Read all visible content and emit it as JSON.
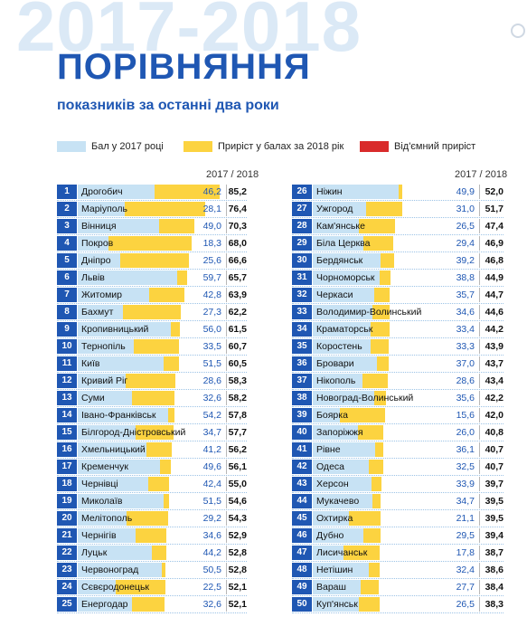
{
  "header": {
    "bg_years": "2017-2018",
    "title": "ПОРІВНЯННЯ",
    "subtitle": "показників за останні два роки"
  },
  "legend": [
    {
      "label": "Бал у 2017 році",
      "color": "#c7e2f4"
    },
    {
      "label": "Приріст у балах за 2018 рік",
      "color": "#fcd340"
    },
    {
      "label": "Від'ємний приріст",
      "color": "#d92b2b"
    }
  ],
  "column_header": "2017 / 2018",
  "chart_data": {
    "type": "bar",
    "stacked": true,
    "title": "ПОРІВНЯННЯ",
    "subtitle": "показників за останні два роки",
    "series": [
      {
        "name": "Бал у 2017 році",
        "color": "#c7e2f4"
      },
      {
        "name": "Приріст у балах за 2018 рік",
        "color": "#fcd340"
      },
      {
        "name": "Від'ємний приріст",
        "color": "#d92b2b"
      }
    ],
    "xlim": [
      0,
      90
    ],
    "rows": [
      {
        "rank": "1",
        "city": "Дрогобич",
        "v2017": "46,2",
        "v2018": "85,2"
      },
      {
        "rank": "2",
        "city": "Маріуполь",
        "v2017": "28,1",
        "v2018": "76,4"
      },
      {
        "rank": "3",
        "city": "Вінниця",
        "v2017": "49,0",
        "v2018": "70,3"
      },
      {
        "rank": "4",
        "city": "Покров",
        "v2017": "18,3",
        "v2018": "68,0"
      },
      {
        "rank": "5",
        "city": "Дніпро",
        "v2017": "25,6",
        "v2018": "66,6"
      },
      {
        "rank": "6",
        "city": "Львів",
        "v2017": "59,7",
        "v2018": "65,7"
      },
      {
        "rank": "7",
        "city": "Житомир",
        "v2017": "42,8",
        "v2018": "63,9"
      },
      {
        "rank": "8",
        "city": "Бахмут",
        "v2017": "27,3",
        "v2018": "62,2"
      },
      {
        "rank": "9",
        "city": "Кропивницький",
        "v2017": "56,0",
        "v2018": "61,5"
      },
      {
        "rank": "10",
        "city": "Тернопіль",
        "v2017": "33,5",
        "v2018": "60,7"
      },
      {
        "rank": "11",
        "city": "Київ",
        "v2017": "51,5",
        "v2018": "60,5"
      },
      {
        "rank": "12",
        "city": "Кривий Ріг",
        "v2017": "28,6",
        "v2018": "58,3"
      },
      {
        "rank": "13",
        "city": "Суми",
        "v2017": "32,6",
        "v2018": "58,2"
      },
      {
        "rank": "14",
        "city": "Івано-Франківськ",
        "v2017": "54,2",
        "v2018": "57,8"
      },
      {
        "rank": "15",
        "city": "Білгород-Дністровський",
        "v2017": "34,7",
        "v2018": "57,7"
      },
      {
        "rank": "16",
        "city": "Хмельницький",
        "v2017": "41,2",
        "v2018": "56,2"
      },
      {
        "rank": "17",
        "city": "Кременчук",
        "v2017": "49,6",
        "v2018": "56,1"
      },
      {
        "rank": "18",
        "city": "Чернівці",
        "v2017": "42,4",
        "v2018": "55,0"
      },
      {
        "rank": "19",
        "city": "Миколаїв",
        "v2017": "51,5",
        "v2018": "54,6"
      },
      {
        "rank": "20",
        "city": "Мелітополь",
        "v2017": "29,2",
        "v2018": "54,3"
      },
      {
        "rank": "21",
        "city": "Чернігів",
        "v2017": "34,6",
        "v2018": "52,9"
      },
      {
        "rank": "22",
        "city": "Луцьк",
        "v2017": "44,2",
        "v2018": "52,8"
      },
      {
        "rank": "23",
        "city": "Червоноград",
        "v2017": "50,5",
        "v2018": "52,8"
      },
      {
        "rank": "24",
        "city": "Сєвєродонецьк",
        "v2017": "22,5",
        "v2018": "52,1"
      },
      {
        "rank": "25",
        "city": "Енергодар",
        "v2017": "32,6",
        "v2018": "52,1"
      },
      {
        "rank": "26",
        "city": "Ніжин",
        "v2017": "49,9",
        "v2018": "52,0"
      },
      {
        "rank": "27",
        "city": "Ужгород",
        "v2017": "31,0",
        "v2018": "51,7"
      },
      {
        "rank": "28",
        "city": "Кам'янське",
        "v2017": "26,5",
        "v2018": "47,4"
      },
      {
        "rank": "29",
        "city": "Біла Церква",
        "v2017": "29,4",
        "v2018": "46,9"
      },
      {
        "rank": "30",
        "city": "Бердянськ",
        "v2017": "39,2",
        "v2018": "46,8"
      },
      {
        "rank": "31",
        "city": "Чорноморськ",
        "v2017": "38,8",
        "v2018": "44,9"
      },
      {
        "rank": "32",
        "city": "Черкаси",
        "v2017": "35,7",
        "v2018": "44,7"
      },
      {
        "rank": "33",
        "city": "Володимир-Волинський",
        "v2017": "34,6",
        "v2018": "44,6"
      },
      {
        "rank": "34",
        "city": "Краматорськ",
        "v2017": "33,4",
        "v2018": "44,2"
      },
      {
        "rank": "35",
        "city": "Коростень",
        "v2017": "33,3",
        "v2018": "43,9"
      },
      {
        "rank": "36",
        "city": "Бровари",
        "v2017": "37,0",
        "v2018": "43,7"
      },
      {
        "rank": "37",
        "city": "Нікополь",
        "v2017": "28,6",
        "v2018": "43,4"
      },
      {
        "rank": "38",
        "city": "Новоград-Волинський",
        "v2017": "35,6",
        "v2018": "42,2"
      },
      {
        "rank": "39",
        "city": "Боярка",
        "v2017": "15,6",
        "v2018": "42,0"
      },
      {
        "rank": "40",
        "city": "Запоріжжя",
        "v2017": "26,0",
        "v2018": "40,8"
      },
      {
        "rank": "41",
        "city": "Рівне",
        "v2017": "36,1",
        "v2018": "40,7"
      },
      {
        "rank": "42",
        "city": "Одеса",
        "v2017": "32,5",
        "v2018": "40,7"
      },
      {
        "rank": "43",
        "city": "Херсон",
        "v2017": "33,9",
        "v2018": "39,7"
      },
      {
        "rank": "44",
        "city": "Мукачево",
        "v2017": "34,7",
        "v2018": "39,5"
      },
      {
        "rank": "45",
        "city": "Охтирка",
        "v2017": "21,1",
        "v2018": "39,5"
      },
      {
        "rank": "46",
        "city": "Дубно",
        "v2017": "29,5",
        "v2018": "39,4"
      },
      {
        "rank": "47",
        "city": "Лисичанськ",
        "v2017": "17,8",
        "v2018": "38,7"
      },
      {
        "rank": "48",
        "city": "Нетішин",
        "v2017": "32,4",
        "v2018": "38,6"
      },
      {
        "rank": "49",
        "city": "Вараш",
        "v2017": "27,7",
        "v2018": "38,4"
      },
      {
        "rank": "50",
        "city": "Куп'янськ",
        "v2017": "26,5",
        "v2018": "38,3"
      }
    ]
  }
}
